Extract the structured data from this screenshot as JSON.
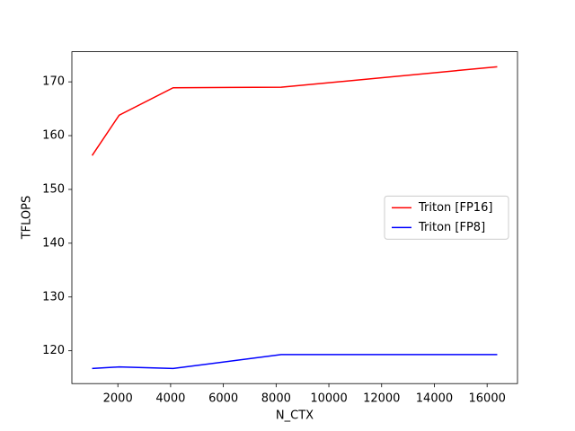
{
  "chart_data": {
    "type": "line",
    "x_label": "N_CTX",
    "y_label": "TFLOPS",
    "x": [
      1024,
      2048,
      4096,
      8192,
      16384
    ],
    "series": [
      {
        "name": "Triton [FP16]",
        "color": "#ff0000",
        "values": [
          156.3,
          163.8,
          168.9,
          169.0,
          172.8
        ]
      },
      {
        "name": "Triton [FP8]",
        "color": "#0000ff",
        "values": [
          116.7,
          117.0,
          116.7,
          119.3,
          119.3
        ]
      }
    ],
    "xlim": [
      256,
      17152
    ],
    "xticks": [
      2000,
      4000,
      6000,
      8000,
      10000,
      12000,
      14000,
      16000
    ],
    "ylim": [
      113.9,
      175.6
    ],
    "yticks": [
      120,
      130,
      140,
      150,
      160,
      170
    ],
    "legend": "center right"
  }
}
